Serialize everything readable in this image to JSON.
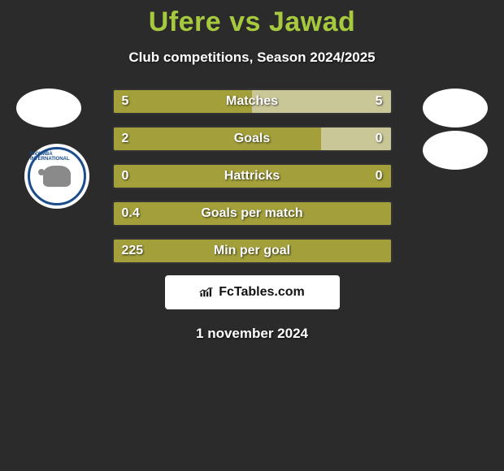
{
  "title": {
    "player1": "Ufere",
    "vs": "vs",
    "player2": "Jawad",
    "color": "#a7c93e"
  },
  "subtitle": "Club competitions, Season 2024/2025",
  "date": "1 november 2024",
  "brand": {
    "icon": "chart-icon",
    "text": "FcTables.com"
  },
  "colors": {
    "bar_full": "#a3a03b",
    "bar_light": "#c9c698",
    "background": "#2b2b2b",
    "text": "#ffffff"
  },
  "bars": [
    {
      "label": "Matches",
      "left": "5",
      "right": "5",
      "left_pct": 50,
      "right_pct": 50,
      "right_light": true
    },
    {
      "label": "Goals",
      "left": "2",
      "right": "0",
      "left_pct": 75,
      "right_pct": 25,
      "right_light": true
    },
    {
      "label": "Hattricks",
      "left": "0",
      "right": "0",
      "left_pct": 100,
      "right_pct": 0,
      "right_light": false
    },
    {
      "label": "Goals per match",
      "left": "0.4",
      "right": "",
      "left_pct": 100,
      "right_pct": 0,
      "right_light": false
    },
    {
      "label": "Min per goal",
      "left": "225",
      "right": "",
      "left_pct": 100,
      "right_pct": 0,
      "right_light": false
    }
  ],
  "badges": {
    "left_player_logo": "oval-placeholder",
    "right_player_logo": "oval-placeholder",
    "right_player_logo2": "oval-placeholder",
    "club_left_name": "ENYIMBA INTERNATIONAL"
  }
}
